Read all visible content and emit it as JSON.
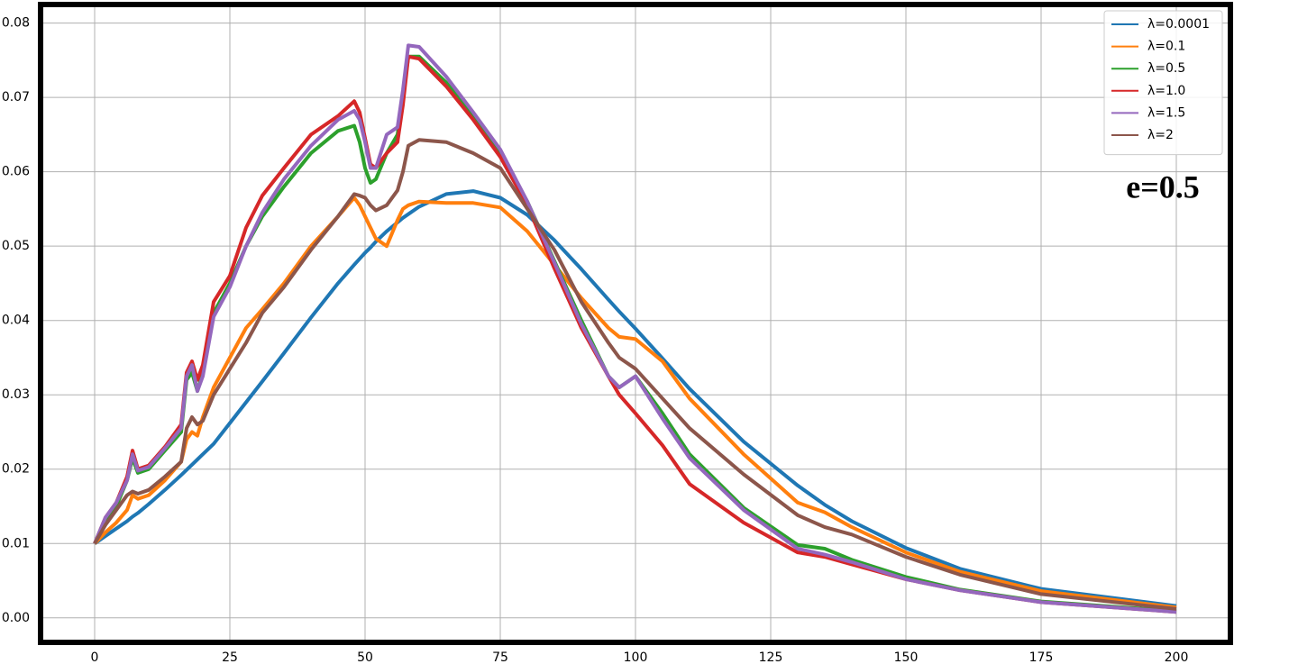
{
  "chart_data": {
    "type": "line",
    "annotation": "e=0.5",
    "legend": "upper right",
    "grid": true,
    "x": [
      0,
      2,
      4,
      6,
      7,
      8,
      10,
      13,
      16,
      17,
      18,
      19,
      20,
      22,
      25,
      28,
      31,
      35,
      40,
      45,
      48,
      49,
      50,
      51,
      52,
      54,
      56,
      57,
      58,
      60,
      65,
      70,
      75,
      80,
      85,
      90,
      95,
      97,
      100,
      105,
      110,
      120,
      130,
      135,
      140,
      150,
      160,
      175,
      200
    ],
    "xlim": [
      -10,
      210
    ],
    "xticks": [
      0,
      25,
      50,
      75,
      100,
      125,
      150,
      175,
      200
    ],
    "ylim": [
      -0.0033,
      0.0825
    ],
    "yticks": [
      {
        "value": 0,
        "label": "0.00"
      },
      {
        "value": 0.01,
        "label": "0.01"
      },
      {
        "value": 0.02,
        "label": "0.02"
      },
      {
        "value": 0.03,
        "label": "0.03"
      },
      {
        "value": 0.04,
        "label": "0.04"
      },
      {
        "value": 0.05,
        "label": "0.05"
      },
      {
        "value": 0.06,
        "label": "0.06"
      },
      {
        "value": 0.07,
        "label": "0.07"
      },
      {
        "value": 0.08,
        "label": "0.08"
      }
    ],
    "series": [
      {
        "name": "λ=0.0001",
        "color": "#1f77b4",
        "values": [
          0.01,
          0.011,
          0.012,
          0.013,
          0.0136,
          0.0141,
          0.0153,
          0.0172,
          0.0192,
          0.0199,
          0.0206,
          0.0213,
          0.022,
          0.0234,
          0.0262,
          0.029,
          0.0318,
          0.0356,
          0.0404,
          0.045,
          0.0475,
          0.0483,
          0.0491,
          0.0498,
          0.0506,
          0.052,
          0.0532,
          0.0538,
          0.0543,
          0.0553,
          0.057,
          0.0574,
          0.0565,
          0.0542,
          0.0508,
          0.0469,
          0.0428,
          0.0412,
          0.0389,
          0.0349,
          0.0308,
          0.0237,
          0.0178,
          0.0152,
          0.013,
          0.0094,
          0.0066,
          0.0039,
          0.0016
        ]
      },
      {
        "name": "λ=0.1",
        "color": "#ff7f0e",
        "values": [
          0.01,
          0.0115,
          0.0128,
          0.0145,
          0.0165,
          0.016,
          0.0165,
          0.0185,
          0.021,
          0.024,
          0.025,
          0.0245,
          0.027,
          0.031,
          0.035,
          0.039,
          0.0415,
          0.045,
          0.05,
          0.054,
          0.0565,
          0.0555,
          0.054,
          0.0525,
          0.051,
          0.05,
          0.0535,
          0.055,
          0.0555,
          0.056,
          0.0558,
          0.0558,
          0.0552,
          0.052,
          0.0475,
          0.043,
          0.039,
          0.0378,
          0.0375,
          0.0345,
          0.0295,
          0.022,
          0.0155,
          0.0142,
          0.0122,
          0.0088,
          0.0062,
          0.0036,
          0.0014
        ]
      },
      {
        "name": "λ=0.5",
        "color": "#2ca02c",
        "values": [
          0.01,
          0.013,
          0.015,
          0.0185,
          0.0215,
          0.0195,
          0.02,
          0.0225,
          0.025,
          0.032,
          0.033,
          0.0305,
          0.033,
          0.041,
          0.045,
          0.05,
          0.054,
          0.058,
          0.0625,
          0.0655,
          0.0662,
          0.064,
          0.0605,
          0.0585,
          0.059,
          0.0625,
          0.065,
          0.07,
          0.0755,
          0.0755,
          0.072,
          0.0675,
          0.0625,
          0.056,
          0.048,
          0.04,
          0.0325,
          0.031,
          0.0325,
          0.0275,
          0.022,
          0.0148,
          0.0098,
          0.0093,
          0.0078,
          0.0055,
          0.0038,
          0.0022,
          0.0009
        ]
      },
      {
        "name": "λ=1.0",
        "color": "#d62728",
        "values": [
          0.01,
          0.0135,
          0.0155,
          0.019,
          0.0225,
          0.02,
          0.0205,
          0.023,
          0.026,
          0.033,
          0.0345,
          0.032,
          0.034,
          0.0425,
          0.046,
          0.0525,
          0.0568,
          0.0605,
          0.065,
          0.0675,
          0.0695,
          0.068,
          0.0645,
          0.061,
          0.0605,
          0.0625,
          0.064,
          0.069,
          0.0755,
          0.0752,
          0.0715,
          0.067,
          0.062,
          0.0555,
          0.047,
          0.039,
          0.0325,
          0.03,
          0.0275,
          0.0232,
          0.018,
          0.0128,
          0.0088,
          0.0082,
          0.0072,
          0.0052,
          0.0037,
          0.0021,
          0.0008
        ]
      },
      {
        "name": "λ=1.5",
        "color": "#9467bd",
        "values": [
          0.01,
          0.0135,
          0.0155,
          0.0185,
          0.022,
          0.0198,
          0.0203,
          0.0228,
          0.0255,
          0.0325,
          0.034,
          0.0305,
          0.0325,
          0.0405,
          0.0445,
          0.05,
          0.0545,
          0.059,
          0.0635,
          0.067,
          0.0682,
          0.067,
          0.064,
          0.0605,
          0.0605,
          0.065,
          0.066,
          0.071,
          0.077,
          0.0768,
          0.0728,
          0.068,
          0.063,
          0.056,
          0.0478,
          0.0395,
          0.0325,
          0.031,
          0.0325,
          0.0268,
          0.0215,
          0.0145,
          0.0093,
          0.0085,
          0.0075,
          0.0052,
          0.0037,
          0.0021,
          0.0008
        ]
      },
      {
        "name": "λ=2",
        "color": "#8c564b",
        "values": [
          0.01,
          0.0125,
          0.0145,
          0.0165,
          0.017,
          0.0167,
          0.0172,
          0.019,
          0.021,
          0.0255,
          0.027,
          0.026,
          0.0265,
          0.03,
          0.0335,
          0.037,
          0.041,
          0.0445,
          0.0495,
          0.054,
          0.057,
          0.0568,
          0.0565,
          0.0555,
          0.0548,
          0.0555,
          0.0575,
          0.06,
          0.0635,
          0.0643,
          0.064,
          0.0625,
          0.0605,
          0.055,
          0.0495,
          0.0425,
          0.037,
          0.035,
          0.0335,
          0.0295,
          0.0255,
          0.0193,
          0.0138,
          0.0122,
          0.0112,
          0.0082,
          0.0058,
          0.0032,
          0.0012
        ]
      }
    ]
  }
}
